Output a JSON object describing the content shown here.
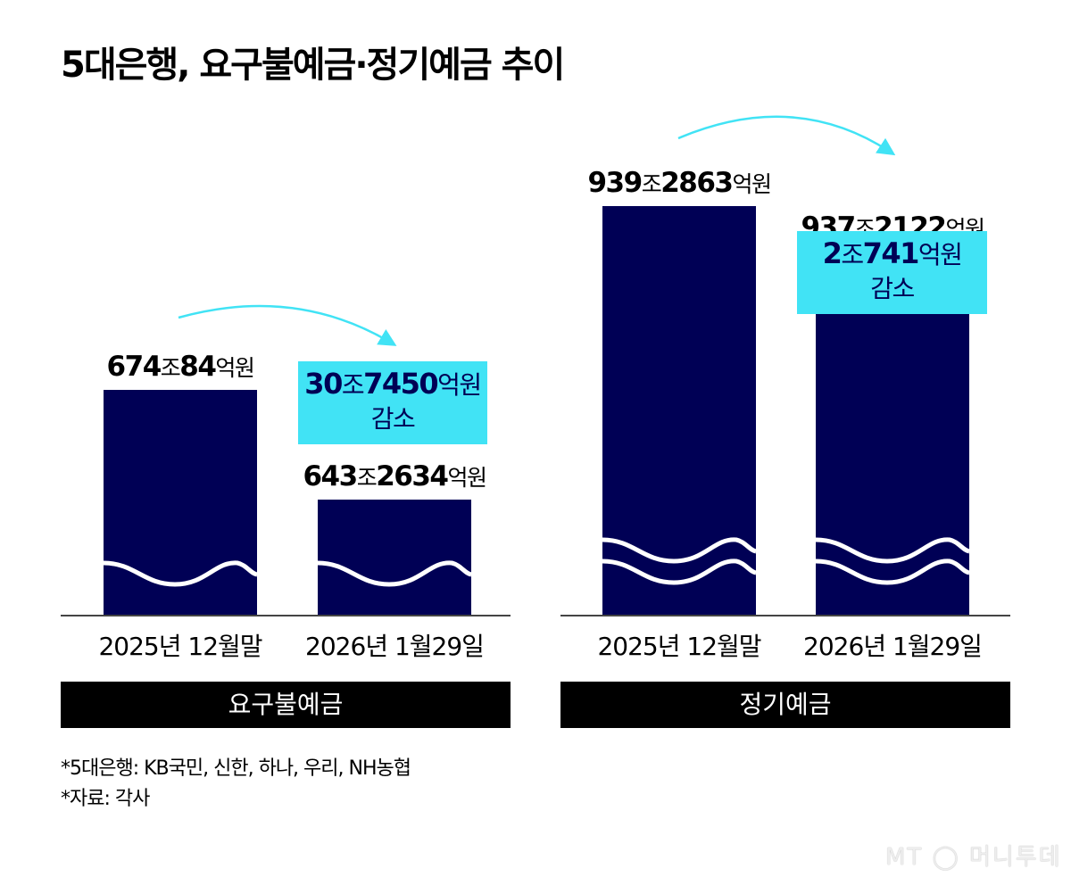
{
  "title": "5대은행, 요구불예금·정기예금 추이",
  "chart_data": [
    {
      "type": "bar",
      "panel": "요구불예금",
      "categories": [
        "2025년 12월말",
        "2026년 1월29일"
      ],
      "values": [
        6740084,
        6432634
      ],
      "unit": "억원",
      "axis": "broken",
      "labels": [
        {
          "n1": "674",
          "u1": "조",
          "n2": "84",
          "u2": "억원"
        },
        {
          "n1": "643",
          "u1": "조",
          "n2": "2634",
          "u2": "억원"
        }
      ],
      "change": {
        "n1": "30",
        "u1": "조",
        "n2": "7450",
        "u2": "억원",
        "text": "감소"
      }
    },
    {
      "type": "bar",
      "panel": "정기예금",
      "categories": [
        "2025년 12월말",
        "2026년 1월29일"
      ],
      "values": [
        9392863,
        9372122
      ],
      "unit": "억원",
      "axis": "broken",
      "labels": [
        {
          "n1": "939",
          "u1": "조",
          "n2": "2863",
          "u2": "억원"
        },
        {
          "n1": "937",
          "u1": "조",
          "n2": "2122",
          "u2": "억원"
        }
      ],
      "change": {
        "n1": "2",
        "u1": "조",
        "n2": "741",
        "u2": "억원",
        "text": "감소"
      }
    }
  ],
  "notes": [
    "*5대은행: KB국민, 신한, 하나, 우리, NH농협",
    "*자료: 각사"
  ],
  "logo": "MT 머니투데이",
  "colors": {
    "bar": "#000055",
    "highlight": "#41e3f5",
    "arrow": "#41e3f5",
    "band": "#000000"
  }
}
